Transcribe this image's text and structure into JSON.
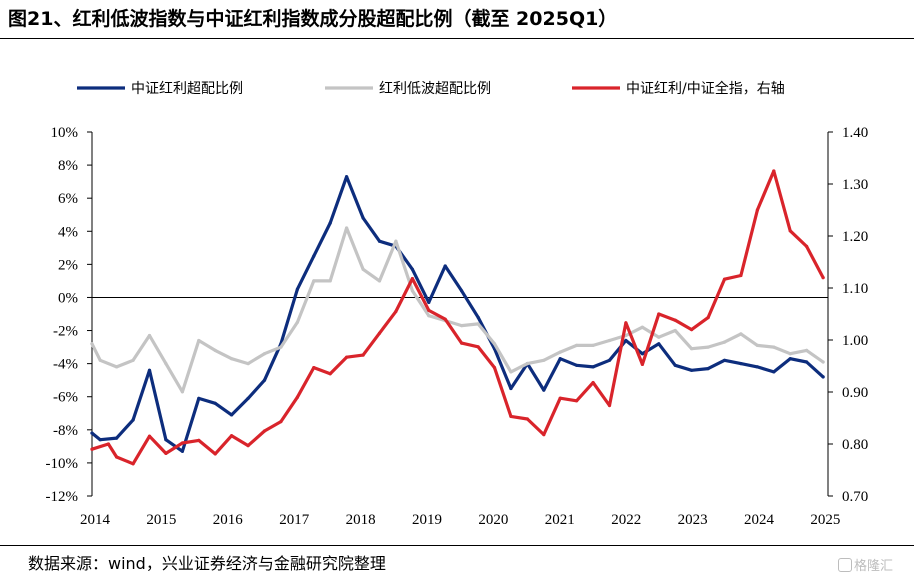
{
  "title": "图21、红利低波指数与中证红利指数成分股超配比例（截至 2025Q1）",
  "source": "数据来源：wind，兴业证券经济与金融研究院整理",
  "watermark": "格隆汇",
  "chart_data": {
    "type": "line",
    "ylim_left": [
      -0.12,
      0.1
    ],
    "ylim_right": [
      0.7,
      1.4
    ],
    "xlim": [
      2014.0,
      2025.2
    ],
    "left_ticks": [
      "10%",
      "8%",
      "6%",
      "4%",
      "2%",
      "0%",
      "-2%",
      "-4%",
      "-6%",
      "-8%",
      "-10%",
      "-12%"
    ],
    "right_ticks": [
      "1.40",
      "1.30",
      "1.20",
      "1.10",
      "1.00",
      "0.90",
      "0.80",
      "0.70"
    ],
    "x_ticks": [
      "2014",
      "2015",
      "2016",
      "2017",
      "2018",
      "2019",
      "2020",
      "2021",
      "2022",
      "2023",
      "2024",
      "2025"
    ],
    "grid": false,
    "legend_position": "top",
    "series": [
      {
        "name": "中证红利超配比例",
        "axis": "left",
        "color": "#0d2d7d",
        "x": [
          2014.0,
          2014.125,
          2014.375,
          2014.625,
          2014.875,
          2015.125,
          2015.375,
          2015.625,
          2015.875,
          2016.125,
          2016.375,
          2016.625,
          2016.875,
          2017.125,
          2017.375,
          2017.625,
          2017.875,
          2018.125,
          2018.375,
          2018.625,
          2018.875,
          2019.125,
          2019.375,
          2019.625,
          2019.875,
          2020.125,
          2020.375,
          2020.625,
          2020.875,
          2021.125,
          2021.375,
          2021.625,
          2021.875,
          2022.125,
          2022.375,
          2022.625,
          2022.875,
          2023.125,
          2023.375,
          2023.625,
          2023.875,
          2024.125,
          2024.375,
          2024.625,
          2024.875,
          2025.125
        ],
        "y": [
          -0.082,
          -0.086,
          -0.085,
          -0.074,
          -0.044,
          -0.086,
          -0.093,
          -0.061,
          -0.064,
          -0.071,
          -0.061,
          -0.05,
          -0.028,
          0.005,
          0.025,
          0.045,
          0.073,
          0.048,
          0.034,
          0.031,
          0.017,
          -0.003,
          0.019,
          0.004,
          -0.012,
          -0.031,
          -0.055,
          -0.04,
          -0.056,
          -0.037,
          -0.041,
          -0.042,
          -0.038,
          -0.026,
          -0.034,
          -0.028,
          -0.041,
          -0.044,
          -0.043,
          -0.038,
          -0.04,
          -0.042,
          -0.045,
          -0.037,
          -0.039,
          -0.048
        ]
      },
      {
        "name": "红利低波超配比例",
        "axis": "left",
        "color": "#c4c4c4",
        "x": [
          2014.0,
          2014.125,
          2014.375,
          2014.625,
          2014.875,
          2015.125,
          2015.375,
          2015.625,
          2015.875,
          2016.125,
          2016.375,
          2016.625,
          2016.875,
          2017.125,
          2017.375,
          2017.625,
          2017.875,
          2018.125,
          2018.375,
          2018.625,
          2018.875,
          2019.125,
          2019.375,
          2019.625,
          2019.875,
          2020.125,
          2020.375,
          2020.625,
          2020.875,
          2021.125,
          2021.375,
          2021.625,
          2021.875,
          2022.125,
          2022.375,
          2022.625,
          2022.875,
          2023.125,
          2023.375,
          2023.625,
          2023.875,
          2024.125,
          2024.375,
          2024.625,
          2024.875,
          2025.125
        ],
        "y": [
          -0.028,
          -0.038,
          -0.042,
          -0.038,
          -0.023,
          -0.04,
          -0.057,
          -0.026,
          -0.032,
          -0.037,
          -0.04,
          -0.034,
          -0.03,
          -0.015,
          0.01,
          0.01,
          0.042,
          0.017,
          0.01,
          0.034,
          0.004,
          -0.011,
          -0.014,
          -0.017,
          -0.016,
          -0.028,
          -0.045,
          -0.04,
          -0.038,
          -0.033,
          -0.029,
          -0.029,
          -0.026,
          -0.023,
          -0.018,
          -0.024,
          -0.02,
          -0.031,
          -0.03,
          -0.027,
          -0.022,
          -0.029,
          -0.03,
          -0.034,
          -0.032,
          -0.039
        ]
      },
      {
        "name": "中证红利/中证全指，右轴",
        "axis": "right",
        "color": "#d9242b",
        "x": [
          2014.0,
          2014.25,
          2014.375,
          2014.625,
          2014.875,
          2015.125,
          2015.375,
          2015.625,
          2015.875,
          2016.125,
          2016.375,
          2016.625,
          2016.875,
          2017.125,
          2017.375,
          2017.625,
          2017.875,
          2018.125,
          2018.375,
          2018.625,
          2018.875,
          2019.125,
          2019.375,
          2019.625,
          2019.875,
          2020.125,
          2020.375,
          2020.625,
          2020.875,
          2021.125,
          2021.375,
          2021.625,
          2021.875,
          2022.125,
          2022.375,
          2022.625,
          2022.875,
          2023.125,
          2023.375,
          2023.625,
          2023.875,
          2024.125,
          2024.375,
          2024.625,
          2024.875,
          2025.125
        ],
        "y": [
          0.79,
          0.8,
          0.775,
          0.762,
          0.815,
          0.782,
          0.802,
          0.807,
          0.781,
          0.816,
          0.797,
          0.825,
          0.843,
          0.89,
          0.947,
          0.935,
          0.967,
          0.971,
          1.013,
          1.055,
          1.118,
          1.057,
          1.04,
          0.994,
          0.987,
          0.947,
          0.853,
          0.848,
          0.818,
          0.888,
          0.883,
          0.918,
          0.874,
          1.033,
          0.953,
          1.05,
          1.038,
          1.02,
          1.043,
          1.117,
          1.124,
          1.25,
          1.325,
          1.21,
          1.18,
          1.12
        ]
      }
    ]
  }
}
